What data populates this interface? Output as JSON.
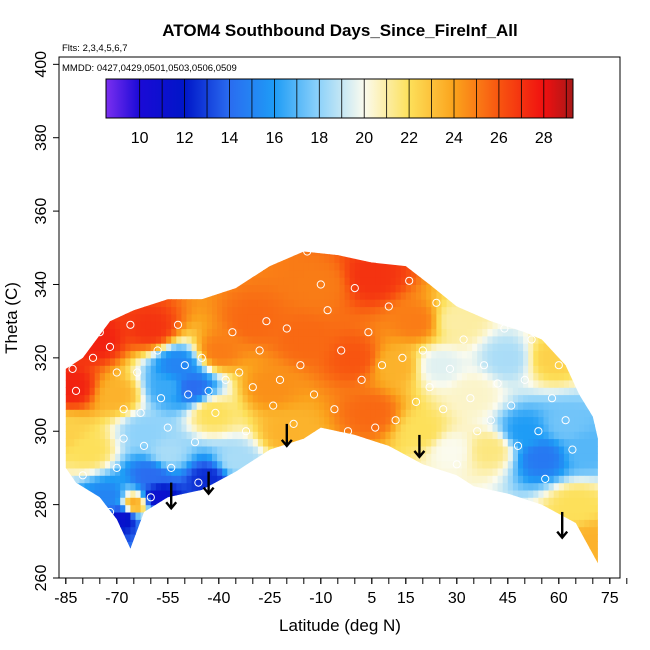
{
  "chart_data": {
    "type": "heatmap",
    "title": "ATOM4 Southbound Days_Since_FireInf_All",
    "flights_note": "Flts: 2,3,4,5,6,7",
    "dates_note": "MMDD: 0427,0429,0501,0503,0506,0509",
    "xlabel": "Latitude (deg N)",
    "ylabel": "Theta (C)",
    "xlim": [
      -87,
      78
    ],
    "ylim": [
      260,
      402
    ],
    "x_ticks": [
      -85,
      -70,
      -55,
      -40,
      -25,
      -10,
      5,
      15,
      30,
      45,
      60,
      75
    ],
    "x_minor_ticks": [
      -85,
      -80,
      -75,
      -70,
      -65,
      -60,
      -55,
      -50,
      -45,
      -40,
      -35,
      -30,
      -25,
      -20,
      -15,
      -10,
      -5,
      0,
      5,
      10,
      15,
      20,
      25,
      30,
      35,
      40,
      45,
      50,
      55,
      60,
      65,
      70,
      75,
      80
    ],
    "y_ticks": [
      260,
      280,
      300,
      320,
      340,
      360,
      380,
      400
    ],
    "colorbar": {
      "min": 8.5,
      "max": 29.3,
      "ticks": [
        10,
        12,
        14,
        16,
        18,
        20,
        22,
        24,
        26,
        28
      ],
      "stops": [
        {
          "v": 8.5,
          "c": "#7b2ff0"
        },
        {
          "v": 10.0,
          "c": "#1a0ad6"
        },
        {
          "v": 12.0,
          "c": "#0016c8"
        },
        {
          "v": 14.0,
          "c": "#2a6cf0"
        },
        {
          "v": 16.0,
          "c": "#1e9cf6"
        },
        {
          "v": 18.0,
          "c": "#8ed2fa"
        },
        {
          "v": 20.0,
          "c": "#fbfbee"
        },
        {
          "v": 22.0,
          "c": "#fde05a"
        },
        {
          "v": 24.0,
          "c": "#fba31c"
        },
        {
          "v": 26.0,
          "c": "#f85510"
        },
        {
          "v": 28.0,
          "c": "#f01010"
        },
        {
          "v": 29.3,
          "c": "#a81818"
        }
      ]
    },
    "domain": {
      "top": [
        [
          -85,
          317
        ],
        [
          -80,
          320
        ],
        [
          -72,
          330
        ],
        [
          -65,
          333
        ],
        [
          -55,
          336
        ],
        [
          -45,
          336
        ],
        [
          -35,
          339
        ],
        [
          -25,
          345
        ],
        [
          -15,
          349
        ],
        [
          -5,
          348
        ],
        [
          5,
          346
        ],
        [
          15,
          345
        ],
        [
          22,
          340
        ],
        [
          30,
          334
        ],
        [
          40,
          330
        ],
        [
          50,
          327
        ],
        [
          55,
          325
        ],
        [
          62,
          318
        ],
        [
          66,
          310
        ],
        [
          70,
          304
        ],
        [
          71.5,
          298
        ]
      ],
      "bottom": [
        [
          -85,
          290
        ],
        [
          -82,
          286
        ],
        [
          -75,
          282
        ],
        [
          -70,
          276
        ],
        [
          -66,
          268
        ],
        [
          -62,
          278
        ],
        [
          -55,
          282
        ],
        [
          -45,
          284
        ],
        [
          -35,
          289
        ],
        [
          -25,
          295
        ],
        [
          -15,
          298
        ],
        [
          -10,
          301
        ],
        [
          0,
          299
        ],
        [
          10,
          296
        ],
        [
          20,
          291
        ],
        [
          30,
          288
        ],
        [
          35,
          285
        ],
        [
          45,
          283
        ],
        [
          55,
          280
        ],
        [
          65,
          275
        ],
        [
          71.5,
          264
        ]
      ]
    },
    "field_anchors": [
      {
        "x": -85,
        "y": 300,
        "v": 22.5
      },
      {
        "x": -83,
        "y": 312,
        "v": 27.5
      },
      {
        "x": -76,
        "y": 325,
        "v": 27.5
      },
      {
        "x": -78,
        "y": 295,
        "v": 22.0
      },
      {
        "x": -72,
        "y": 282,
        "v": 15.0
      },
      {
        "x": -68,
        "y": 277,
        "v": 11.0
      },
      {
        "x": -65,
        "y": 280,
        "v": 24.0
      },
      {
        "x": -70,
        "y": 310,
        "v": 23.5
      },
      {
        "x": -62,
        "y": 300,
        "v": 18.0
      },
      {
        "x": -60,
        "y": 288,
        "v": 14.0
      },
      {
        "x": -58,
        "y": 282,
        "v": 11.0
      },
      {
        "x": -55,
        "y": 294,
        "v": 18.5
      },
      {
        "x": -55,
        "y": 312,
        "v": 16.5
      },
      {
        "x": -52,
        "y": 318,
        "v": 15.0
      },
      {
        "x": -48,
        "y": 312,
        "v": 14.0
      },
      {
        "x": -43,
        "y": 287,
        "v": 12.5
      },
      {
        "x": -42,
        "y": 305,
        "v": 22.0
      },
      {
        "x": -35,
        "y": 292,
        "v": 18.5
      },
      {
        "x": -40,
        "y": 322,
        "v": 25.0
      },
      {
        "x": -60,
        "y": 328,
        "v": 27.0
      },
      {
        "x": -30,
        "y": 330,
        "v": 25.5
      },
      {
        "x": -25,
        "y": 312,
        "v": 24.5
      },
      {
        "x": -20,
        "y": 300,
        "v": 23.5
      },
      {
        "x": -15,
        "y": 325,
        "v": 25.5
      },
      {
        "x": -10,
        "y": 340,
        "v": 25.0
      },
      {
        "x": 0,
        "y": 320,
        "v": 26.0
      },
      {
        "x": 5,
        "y": 342,
        "v": 27.0
      },
      {
        "x": 5,
        "y": 305,
        "v": 25.5
      },
      {
        "x": 12,
        "y": 318,
        "v": 23.5
      },
      {
        "x": 18,
        "y": 330,
        "v": 25.0
      },
      {
        "x": 20,
        "y": 300,
        "v": 22.0
      },
      {
        "x": 25,
        "y": 318,
        "v": 19.5
      },
      {
        "x": 28,
        "y": 295,
        "v": 20.0
      },
      {
        "x": 30,
        "y": 330,
        "v": 21.0
      },
      {
        "x": 35,
        "y": 310,
        "v": 20.5
      },
      {
        "x": 40,
        "y": 295,
        "v": 21.5
      },
      {
        "x": 45,
        "y": 320,
        "v": 18.5
      },
      {
        "x": 50,
        "y": 300,
        "v": 16.0
      },
      {
        "x": 55,
        "y": 293,
        "v": 14.5
      },
      {
        "x": 58,
        "y": 320,
        "v": 22.5
      },
      {
        "x": 62,
        "y": 302,
        "v": 17.5
      },
      {
        "x": 65,
        "y": 280,
        "v": 22.0
      },
      {
        "x": 70,
        "y": 270,
        "v": 23.5
      },
      {
        "x": 68,
        "y": 295,
        "v": 17.0
      }
    ],
    "sample_points": [
      [
        -83,
        317
      ],
      [
        -82,
        311
      ],
      [
        -80,
        288
      ],
      [
        -77,
        320
      ],
      [
        -75,
        327
      ],
      [
        -72,
        323
      ],
      [
        -70,
        316
      ],
      [
        -68,
        306
      ],
      [
        -68,
        298
      ],
      [
        -70,
        290
      ],
      [
        -72,
        278
      ],
      [
        -66,
        329
      ],
      [
        -64,
        316
      ],
      [
        -63,
        305
      ],
      [
        -62,
        296
      ],
      [
        -60,
        282
      ],
      [
        -58,
        322
      ],
      [
        -57,
        309
      ],
      [
        -55,
        301
      ],
      [
        -54,
        290
      ],
      [
        -52,
        329
      ],
      [
        -50,
        318
      ],
      [
        -49,
        310
      ],
      [
        -47,
        297
      ],
      [
        -46,
        286
      ],
      [
        -45,
        320
      ],
      [
        -43,
        311
      ],
      [
        -41,
        305
      ],
      [
        -38,
        314
      ],
      [
        -36,
        327
      ],
      [
        -34,
        316
      ],
      [
        -32,
        300
      ],
      [
        -30,
        312
      ],
      [
        -28,
        322
      ],
      [
        -26,
        330
      ],
      [
        -24,
        307
      ],
      [
        -22,
        314
      ],
      [
        -20,
        328
      ],
      [
        -18,
        302
      ],
      [
        -16,
        318
      ],
      [
        -14,
        349
      ],
      [
        -12,
        310
      ],
      [
        -10,
        340
      ],
      [
        -8,
        333
      ],
      [
        -6,
        306
      ],
      [
        -4,
        322
      ],
      [
        -2,
        300
      ],
      [
        0,
        339
      ],
      [
        2,
        314
      ],
      [
        4,
        327
      ],
      [
        6,
        301
      ],
      [
        8,
        318
      ],
      [
        10,
        334
      ],
      [
        12,
        303
      ],
      [
        14,
        320
      ],
      [
        16,
        341
      ],
      [
        18,
        308
      ],
      [
        20,
        322
      ],
      [
        22,
        312
      ],
      [
        24,
        335
      ],
      [
        26,
        306
      ],
      [
        28,
        317
      ],
      [
        30,
        291
      ],
      [
        32,
        325
      ],
      [
        34,
        309
      ],
      [
        36,
        300
      ],
      [
        38,
        318
      ],
      [
        40,
        303
      ],
      [
        42,
        313
      ],
      [
        44,
        328
      ],
      [
        46,
        307
      ],
      [
        48,
        296
      ],
      [
        50,
        314
      ],
      [
        52,
        325
      ],
      [
        54,
        300
      ],
      [
        56,
        287
      ],
      [
        58,
        309
      ],
      [
        60,
        318
      ],
      [
        62,
        303
      ],
      [
        64,
        295
      ]
    ],
    "arrows": [
      {
        "x": -54,
        "y_start": 286,
        "y_end": 279
      },
      {
        "x": -43,
        "y_start": 289,
        "y_end": 283
      },
      {
        "x": -20,
        "y_start": 302,
        "y_end": 296
      },
      {
        "x": 19,
        "y_start": 299,
        "y_end": 293
      },
      {
        "x": 61,
        "y_start": 278,
        "y_end": 271
      }
    ]
  }
}
